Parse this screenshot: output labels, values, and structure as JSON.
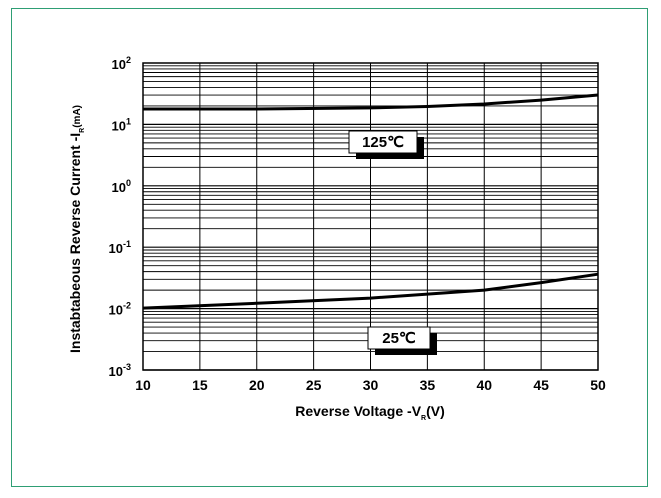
{
  "chart_data": {
    "type": "line",
    "ylabel": {
      "prefix": "Instabtabeous Reverse Current -I",
      "sub": "R",
      "suffix": "(mA)"
    },
    "xlabel": {
      "prefix": "Reverse Voltage -V",
      "sub": "R",
      "suffix": "(V)"
    },
    "x_ticks": [
      10,
      15,
      20,
      25,
      30,
      35,
      40,
      45,
      50
    ],
    "xlim": [
      10,
      50
    ],
    "y_scale": "log",
    "ylim": [
      0.001,
      100
    ],
    "y_ticks": [
      {
        "base": "10",
        "exp": "2",
        "value": 100
      },
      {
        "base": "10",
        "exp": "1",
        "value": 10
      },
      {
        "base": "10",
        "exp": "0",
        "value": 1
      },
      {
        "base": "10",
        "exp": "-1",
        "value": 0.1
      },
      {
        "base": "10",
        "exp": "-2",
        "value": 0.01
      },
      {
        "base": "10",
        "exp": "-3",
        "value": 0.001
      }
    ],
    "grid": true,
    "series": [
      {
        "name": "125℃",
        "color": "#000000",
        "x": [
          10,
          20,
          30,
          35,
          40,
          45,
          50
        ],
        "y": [
          17.8,
          17.8,
          18.6,
          19.6,
          21.5,
          24.9,
          30.1
        ]
      },
      {
        "name": "25℃",
        "color": "#000000",
        "x": [
          10,
          20,
          30,
          40,
          45,
          50
        ],
        "y": [
          0.0102,
          0.0122,
          0.0148,
          0.02,
          0.0265,
          0.0363
        ]
      }
    ],
    "annotations": [
      {
        "text": "125℃",
        "series": "125℃"
      },
      {
        "text": "25℃",
        "series": "25℃"
      }
    ]
  }
}
